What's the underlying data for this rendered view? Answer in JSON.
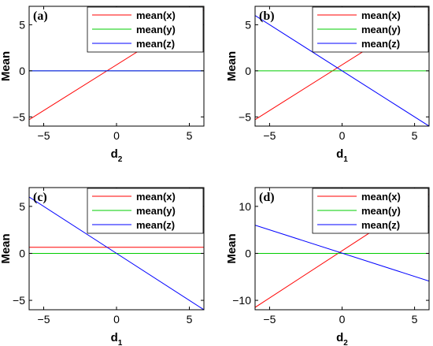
{
  "chart_data": [
    {
      "type": "line",
      "panel_label": "(a)",
      "xlabel": {
        "main": "d",
        "sub": "2"
      },
      "ylabel": "Mean",
      "xlim": [
        -6,
        6
      ],
      "ylim": [
        -6,
        7
      ],
      "xticks": [
        -5,
        0,
        5
      ],
      "yticks": [
        -5,
        0,
        5
      ],
      "x": [
        -6,
        6
      ],
      "series": [
        {
          "name": "mean(x)",
          "color": "#ff0000",
          "values": [
            -5.3,
            6.6
          ]
        },
        {
          "name": "mean(y)",
          "color": "#00cc00",
          "values": [
            0,
            0
          ]
        },
        {
          "name": "mean(z)",
          "color": "#0000ff",
          "values": [
            0,
            0
          ]
        }
      ],
      "legend": "top-right",
      "grid": false
    },
    {
      "type": "line",
      "panel_label": "(b)",
      "xlabel": {
        "main": "d",
        "sub": "1"
      },
      "ylabel": "Mean",
      "xlim": [
        -6,
        6
      ],
      "ylim": [
        -6,
        7
      ],
      "xticks": [
        -5,
        0,
        5
      ],
      "yticks": [
        -5,
        0,
        5
      ],
      "x": [
        -6,
        6
      ],
      "series": [
        {
          "name": "mean(x)",
          "color": "#ff0000",
          "values": [
            -5.3,
            6.6
          ]
        },
        {
          "name": "mean(y)",
          "color": "#00cc00",
          "values": [
            0,
            0
          ]
        },
        {
          "name": "mean(z)",
          "color": "#0000ff",
          "values": [
            6.0,
            -6.0
          ]
        }
      ],
      "legend": "top-right",
      "grid": false
    },
    {
      "type": "line",
      "panel_label": "(c)",
      "xlabel": {
        "main": "d",
        "sub": "1"
      },
      "ylabel": "Mean",
      "xlim": [
        -6,
        6
      ],
      "ylim": [
        -6,
        7
      ],
      "xticks": [
        -5,
        0,
        5
      ],
      "yticks": [
        -5,
        0,
        5
      ],
      "x": [
        -6,
        6
      ],
      "series": [
        {
          "name": "mean(x)",
          "color": "#ff0000",
          "values": [
            0.65,
            0.65
          ]
        },
        {
          "name": "mean(y)",
          "color": "#00cc00",
          "values": [
            0,
            0
          ]
        },
        {
          "name": "mean(z)",
          "color": "#0000ff",
          "values": [
            6.0,
            -6.0
          ]
        }
      ],
      "legend": "top-right",
      "grid": false
    },
    {
      "type": "line",
      "panel_label": "(d)",
      "xlabel": {
        "main": "d",
        "sub": "2"
      },
      "ylabel": "Mean",
      "xlim": [
        -6,
        6
      ],
      "ylim": [
        -12,
        14
      ],
      "xticks": [
        -5,
        0,
        5
      ],
      "yticks": [
        -10,
        0,
        10
      ],
      "x": [
        -6,
        6
      ],
      "series": [
        {
          "name": "mean(x)",
          "color": "#ff0000",
          "values": [
            -11.5,
            12.6
          ]
        },
        {
          "name": "mean(y)",
          "color": "#00cc00",
          "values": [
            0,
            0
          ]
        },
        {
          "name": "mean(z)",
          "color": "#0000ff",
          "values": [
            6.0,
            -5.9
          ]
        }
      ],
      "legend": "top-right",
      "grid": false
    }
  ]
}
